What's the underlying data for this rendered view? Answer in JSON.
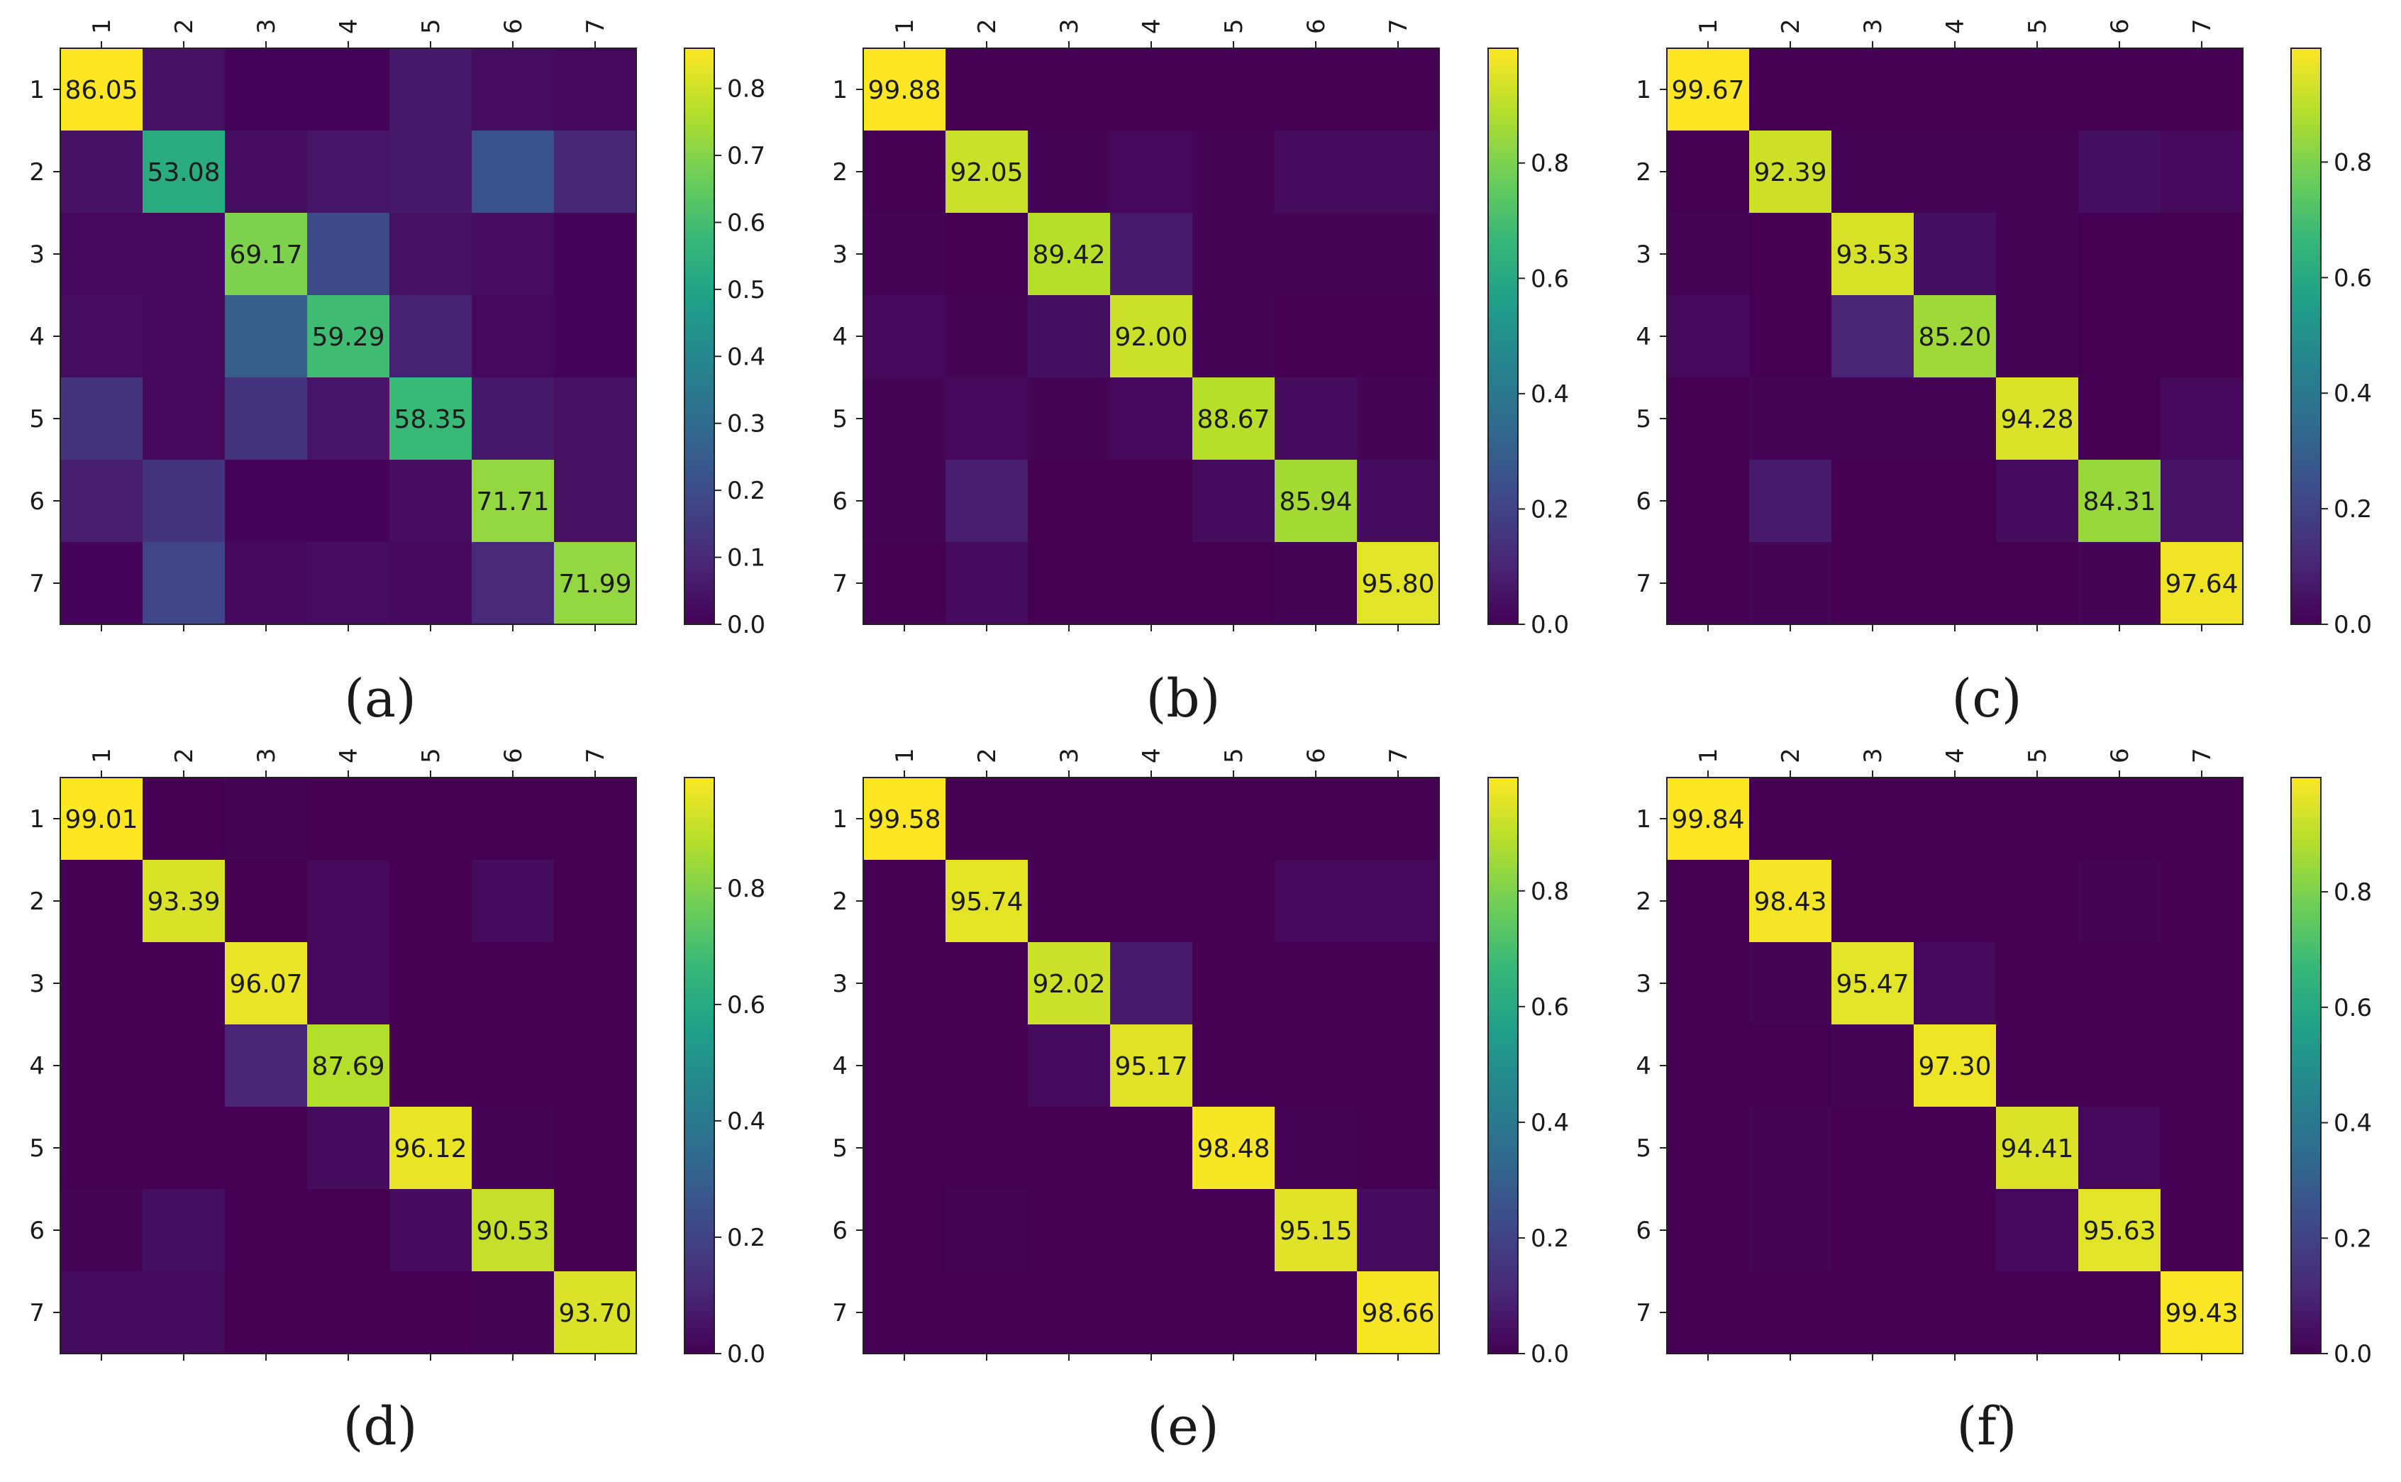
{
  "figure": {
    "panel_count": 6
  },
  "colormap": {
    "name": "viridis",
    "stops": [
      "#440154",
      "#482878",
      "#3e4989",
      "#31688e",
      "#26828e",
      "#1f9e89",
      "#35b779",
      "#6ece58",
      "#b5de2b",
      "#fde725"
    ]
  },
  "chart_data": [
    {
      "type": "heatmap",
      "caption": "(a)",
      "categories": [
        "1",
        "2",
        "3",
        "4",
        "5",
        "6",
        "7"
      ],
      "diagonal_labels": [
        "86.05",
        "53.08",
        "69.17",
        "59.29",
        "58.35",
        "71.71",
        "71.99"
      ],
      "matrix": [
        [
          0.86,
          0.04,
          0.01,
          0.01,
          0.06,
          0.03,
          0.02
        ],
        [
          0.04,
          0.53,
          0.03,
          0.05,
          0.06,
          0.22,
          0.09
        ],
        [
          0.02,
          0.02,
          0.69,
          0.2,
          0.04,
          0.03,
          0.01
        ],
        [
          0.03,
          0.02,
          0.25,
          0.59,
          0.08,
          0.02,
          0.01
        ],
        [
          0.13,
          0.02,
          0.13,
          0.05,
          0.58,
          0.06,
          0.04
        ],
        [
          0.07,
          0.13,
          0.01,
          0.01,
          0.03,
          0.72,
          0.04
        ],
        [
          0.01,
          0.18,
          0.02,
          0.03,
          0.02,
          0.1,
          0.72
        ]
      ],
      "colorbar": {
        "min": 0.0,
        "max": 0.86,
        "ticks": [
          "0.0",
          "0.1",
          "0.2",
          "0.3",
          "0.4",
          "0.5",
          "0.6",
          "0.7",
          "0.8"
        ]
      }
    },
    {
      "type": "heatmap",
      "caption": "(b)",
      "categories": [
        "1",
        "2",
        "3",
        "4",
        "5",
        "6",
        "7"
      ],
      "diagonal_labels": [
        "99.88",
        "92.05",
        "89.42",
        "92.00",
        "88.67",
        "85.94",
        "95.80"
      ],
      "matrix": [
        [
          0.999,
          0.0,
          0.0,
          0.0,
          0.0,
          0.0,
          0.0
        ],
        [
          0.0,
          0.92,
          0.01,
          0.02,
          0.01,
          0.03,
          0.03
        ],
        [
          0.01,
          0.0,
          0.89,
          0.07,
          0.01,
          0.01,
          0.01
        ],
        [
          0.02,
          0.01,
          0.04,
          0.92,
          0.01,
          0.0,
          0.0
        ],
        [
          0.01,
          0.02,
          0.01,
          0.02,
          0.89,
          0.03,
          0.01
        ],
        [
          0.01,
          0.08,
          0.0,
          0.0,
          0.03,
          0.86,
          0.03
        ],
        [
          0.0,
          0.03,
          0.0,
          0.0,
          0.0,
          0.01,
          0.958
        ]
      ],
      "colorbar": {
        "min": 0.0,
        "max": 0.999,
        "ticks": [
          "0.0",
          "0.2",
          "0.4",
          "0.6",
          "0.8"
        ]
      }
    },
    {
      "type": "heatmap",
      "caption": "(c)",
      "categories": [
        "1",
        "2",
        "3",
        "4",
        "5",
        "6",
        "7"
      ],
      "diagonal_labels": [
        "99.67",
        "92.39",
        "93.53",
        "85.20",
        "94.28",
        "84.31",
        "97.64"
      ],
      "matrix": [
        [
          0.997,
          0.0,
          0.0,
          0.0,
          0.0,
          0.0,
          0.0
        ],
        [
          0.0,
          0.924,
          0.01,
          0.01,
          0.01,
          0.04,
          0.02
        ],
        [
          0.01,
          0.0,
          0.935,
          0.04,
          0.01,
          0.0,
          0.0
        ],
        [
          0.02,
          0.0,
          0.1,
          0.852,
          0.01,
          0.0,
          0.0
        ],
        [
          0.0,
          0.01,
          0.01,
          0.01,
          0.943,
          0.0,
          0.02
        ],
        [
          0.0,
          0.07,
          0.0,
          0.0,
          0.03,
          0.843,
          0.05
        ],
        [
          0.0,
          0.01,
          0.0,
          0.0,
          0.0,
          0.01,
          0.976
        ]
      ],
      "colorbar": {
        "min": 0.0,
        "max": 0.997,
        "ticks": [
          "0.0",
          "0.2",
          "0.4",
          "0.6",
          "0.8"
        ]
      }
    },
    {
      "type": "heatmap",
      "caption": "(d)",
      "categories": [
        "1",
        "2",
        "3",
        "4",
        "5",
        "6",
        "7"
      ],
      "diagonal_labels": [
        "99.01",
        "93.39",
        "96.07",
        "87.69",
        "96.12",
        "90.53",
        "93.70"
      ],
      "matrix": [
        [
          0.99,
          0.0,
          0.01,
          0.0,
          0.0,
          0.0,
          0.0
        ],
        [
          0.0,
          0.934,
          0.0,
          0.02,
          0.0,
          0.03,
          0.0
        ],
        [
          0.0,
          0.0,
          0.961,
          0.02,
          0.0,
          0.0,
          0.0
        ],
        [
          0.0,
          0.0,
          0.1,
          0.877,
          0.0,
          0.0,
          0.0
        ],
        [
          0.0,
          0.0,
          0.0,
          0.03,
          0.961,
          0.01,
          0.0
        ],
        [
          0.01,
          0.04,
          0.0,
          0.0,
          0.03,
          0.905,
          0.0
        ],
        [
          0.03,
          0.03,
          0.0,
          0.0,
          0.0,
          0.01,
          0.937
        ]
      ],
      "colorbar": {
        "min": 0.0,
        "max": 0.99,
        "ticks": [
          "0.0",
          "0.2",
          "0.4",
          "0.6",
          "0.8"
        ]
      }
    },
    {
      "type": "heatmap",
      "caption": "(e)",
      "categories": [
        "1",
        "2",
        "3",
        "4",
        "5",
        "6",
        "7"
      ],
      "diagonal_labels": [
        "99.58",
        "95.74",
        "92.02",
        "95.17",
        "98.48",
        "95.15",
        "98.66"
      ],
      "matrix": [
        [
          0.996,
          0.0,
          0.0,
          0.0,
          0.0,
          0.0,
          0.0
        ],
        [
          0.0,
          0.957,
          0.0,
          0.0,
          0.0,
          0.02,
          0.02
        ],
        [
          0.0,
          0.0,
          0.92,
          0.07,
          0.0,
          0.0,
          0.0
        ],
        [
          0.0,
          0.0,
          0.03,
          0.952,
          0.0,
          0.0,
          0.0
        ],
        [
          0.0,
          0.0,
          0.0,
          0.0,
          0.985,
          0.01,
          0.0
        ],
        [
          0.0,
          0.01,
          0.0,
          0.0,
          0.0,
          0.952,
          0.03
        ],
        [
          0.0,
          0.0,
          0.0,
          0.0,
          0.0,
          0.0,
          0.987
        ]
      ],
      "colorbar": {
        "min": 0.0,
        "max": 0.996,
        "ticks": [
          "0.0",
          "0.2",
          "0.4",
          "0.6",
          "0.8"
        ]
      }
    },
    {
      "type": "heatmap",
      "caption": "(f)",
      "categories": [
        "1",
        "2",
        "3",
        "4",
        "5",
        "6",
        "7"
      ],
      "diagonal_labels": [
        "99.84",
        "98.43",
        "95.47",
        "97.30",
        "94.41",
        "95.63",
        "99.43"
      ],
      "matrix": [
        [
          0.998,
          0.0,
          0.0,
          0.0,
          0.0,
          0.0,
          0.0
        ],
        [
          0.0,
          0.984,
          0.0,
          0.0,
          0.0,
          0.01,
          0.0
        ],
        [
          0.0,
          0.01,
          0.955,
          0.02,
          0.0,
          0.0,
          0.0
        ],
        [
          0.0,
          0.0,
          0.01,
          0.973,
          0.0,
          0.0,
          0.0
        ],
        [
          0.0,
          0.01,
          0.0,
          0.0,
          0.944,
          0.02,
          0.0
        ],
        [
          0.0,
          0.01,
          0.0,
          0.0,
          0.02,
          0.956,
          0.0
        ],
        [
          0.0,
          0.0,
          0.0,
          0.0,
          0.0,
          0.0,
          0.994
        ]
      ],
      "colorbar": {
        "min": 0.0,
        "max": 0.998,
        "ticks": [
          "0.0",
          "0.2",
          "0.4",
          "0.6",
          "0.8"
        ]
      }
    }
  ]
}
